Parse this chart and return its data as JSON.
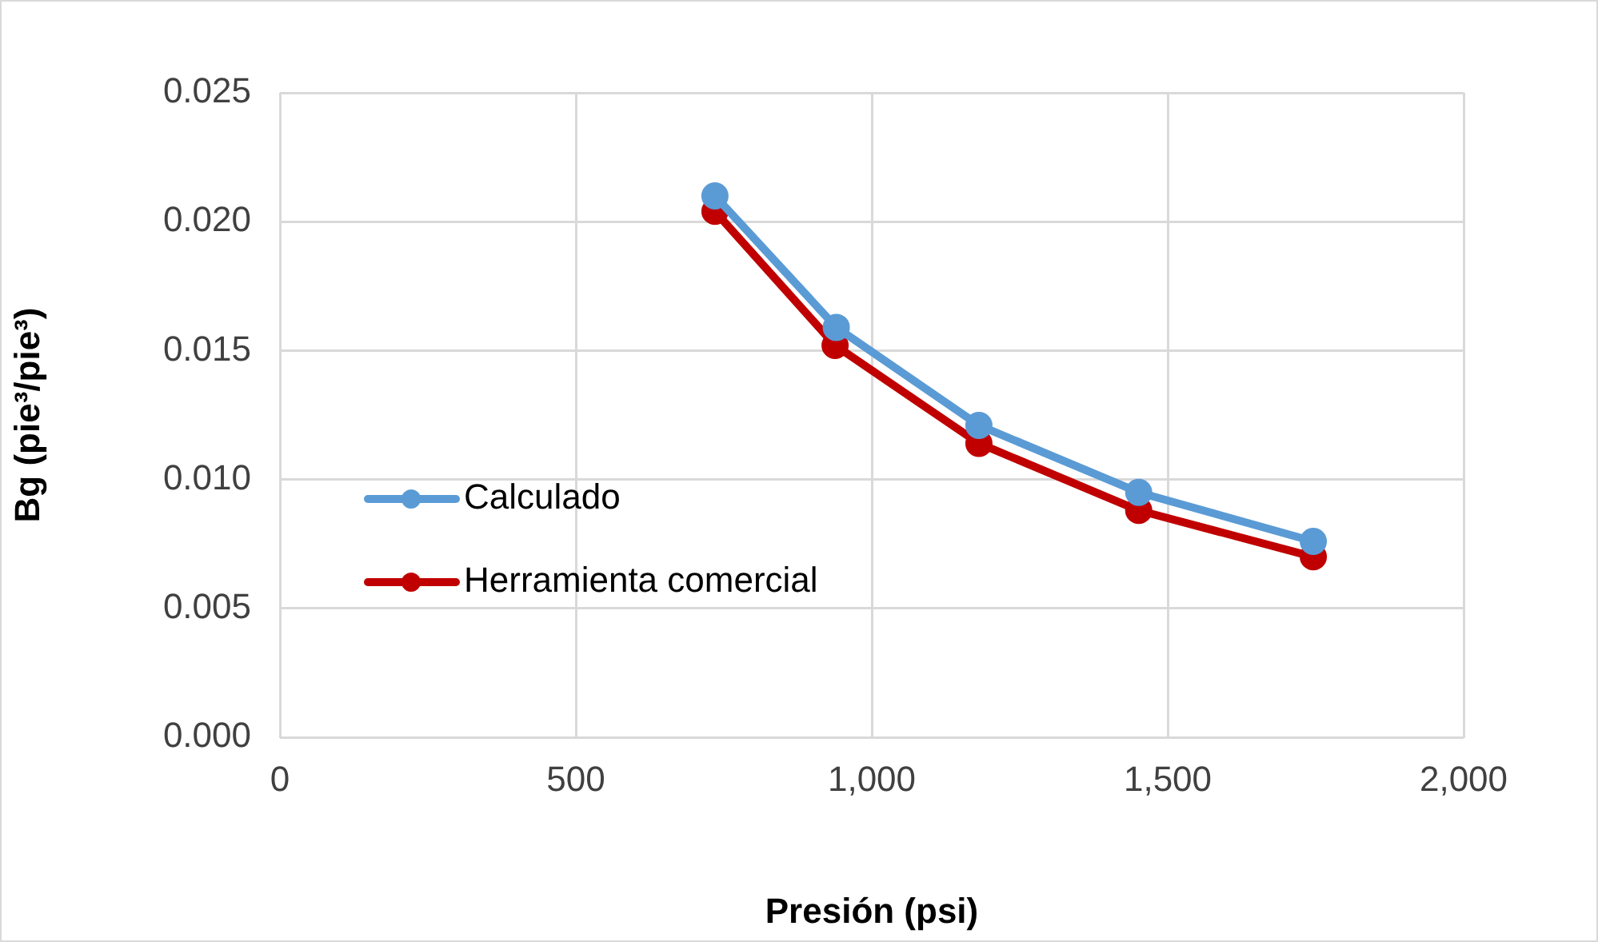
{
  "chart_data": {
    "type": "line",
    "xlabel": "Presión (psi)",
    "ylabel": "Bg (pie³/pie³)",
    "xlim": [
      0,
      2000
    ],
    "xticks": [
      {
        "value": 0,
        "label": "0"
      },
      {
        "value": 500,
        "label": "500"
      },
      {
        "value": 1000,
        "label": "1,000"
      },
      {
        "value": 1500,
        "label": "1,500"
      },
      {
        "value": 2000,
        "label": "2,000"
      }
    ],
    "ylim": [
      0,
      0.025
    ],
    "yticks": [
      {
        "value": 0,
        "label": "0.000"
      },
      {
        "value": 0.005,
        "label": "0.005"
      },
      {
        "value": 0.01,
        "label": "0.010"
      },
      {
        "value": 0.015,
        "label": "0.015"
      },
      {
        "value": 0.02,
        "label": "0.020"
      },
      {
        "value": 0.025,
        "label": "0.025"
      }
    ],
    "grid": true,
    "legend": "bottom left",
    "marker": "circle",
    "line_style": "solid",
    "series": [
      {
        "name": "Calculado",
        "color": "#5b9bd5",
        "x": [
          735,
          940,
          1181,
          1451,
          1746
        ],
        "values": [
          0.021,
          0.0159,
          0.0121,
          0.0095,
          0.0076
        ]
      },
      {
        "name": "Herramienta comercial",
        "color": "#c00000",
        "x": [
          735,
          938,
          1181,
          1451,
          1746
        ],
        "values": [
          0.0204,
          0.0152,
          0.0114,
          0.0088,
          0.007
        ]
      }
    ]
  }
}
